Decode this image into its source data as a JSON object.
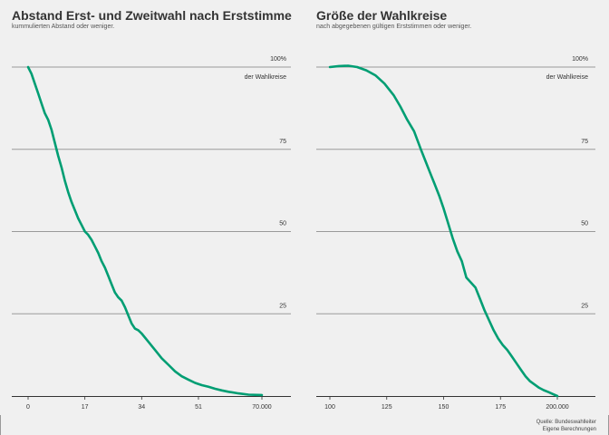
{
  "chart_data": [
    {
      "type": "line",
      "title": "Abstand Erst- und Zweitwahl nach Erststimme",
      "subtitle": "kummulierten Abstand oder weniger.",
      "x_tick_labels": [
        "0",
        "17",
        "34",
        "51",
        "70.000"
      ],
      "x_ticks": [
        0,
        17000,
        34000,
        51000,
        70000
      ],
      "xlim": [
        0,
        70000
      ],
      "y_tick_labels": [
        "100%",
        "75",
        "50",
        "25"
      ],
      "y_ticks": [
        100,
        75,
        50,
        25
      ],
      "y_unit_label": "der Wahlkreise",
      "ylim": [
        0,
        100
      ],
      "grid": true,
      "color": "#009e73",
      "series": [
        {
          "x": [
            0,
            1000,
            2000,
            3000,
            4000,
            5000,
            6000,
            7000,
            8000,
            9000,
            10000,
            11000,
            12000,
            13000,
            14000,
            15000,
            16000,
            17000,
            18000,
            19000,
            20000,
            21000,
            22000,
            23000,
            24000,
            25000,
            26000,
            27000,
            28000,
            29000,
            30000,
            31000,
            32000,
            33000,
            34000,
            36000,
            38000,
            40000,
            42000,
            44000,
            46000,
            48000,
            50000,
            52000,
            54000,
            56000,
            58000,
            60000,
            63000,
            66000,
            70000
          ],
          "y": [
            100,
            98,
            95,
            92,
            89,
            86,
            84,
            81,
            77,
            73,
            69.5,
            65.5,
            62,
            59,
            56.5,
            54,
            52,
            50,
            49,
            47.5,
            45.5,
            43.5,
            41,
            39,
            36.5,
            34,
            31.5,
            30,
            29,
            27,
            24.5,
            22,
            20.5,
            20,
            19,
            16.5,
            14,
            11.5,
            9.5,
            7.5,
            6,
            5,
            4,
            3.3,
            2.8,
            2.2,
            1.7,
            1.3,
            0.8,
            0.4,
            0.3
          ]
        }
      ]
    },
    {
      "type": "line",
      "title": "Größe der Wahlkreise",
      "subtitle": "nach abgegebenen gültigen Erststimmen oder weniger.",
      "x_tick_labels": [
        "100",
        "125",
        "150",
        "175",
        "200.000"
      ],
      "x_ticks": [
        100000,
        125000,
        150000,
        175000,
        200000
      ],
      "xlim": [
        100000,
        200000
      ],
      "y_tick_labels": [
        "100%",
        "75",
        "50",
        "25"
      ],
      "y_ticks": [
        100,
        75,
        50,
        25
      ],
      "y_unit_label": "der Wahlkreise",
      "ylim": [
        0,
        100
      ],
      "grid": true,
      "color": "#009e73",
      "series": [
        {
          "x": [
            100000,
            104000,
            108000,
            112000,
            116000,
            120000,
            124000,
            128000,
            131000,
            134000,
            137000,
            140000,
            142000,
            144000,
            146000,
            148000,
            150000,
            152000,
            154000,
            156000,
            158000,
            160000,
            162000,
            164000,
            166000,
            168000,
            170000,
            172000,
            174000,
            176000,
            178000,
            180000,
            182000,
            184000,
            186000,
            188000,
            190000,
            192000,
            194000,
            196000,
            198000,
            200000
          ],
          "y": [
            100,
            100.3,
            100.4,
            100,
            99,
            97.5,
            95,
            91.5,
            88,
            84,
            80.5,
            75,
            71.5,
            68,
            64.5,
            61,
            57,
            52.5,
            48,
            44,
            41,
            36,
            34.5,
            33,
            29.5,
            26,
            23,
            20,
            17.5,
            15.5,
            14,
            12,
            10,
            8,
            6,
            4.5,
            3.5,
            2.5,
            1.8,
            1.2,
            0.6,
            0
          ]
        }
      ]
    }
  ],
  "source": {
    "line1": "Quelle: Bundeswahlleiter",
    "line2": "Eigene Berechnungen"
  }
}
